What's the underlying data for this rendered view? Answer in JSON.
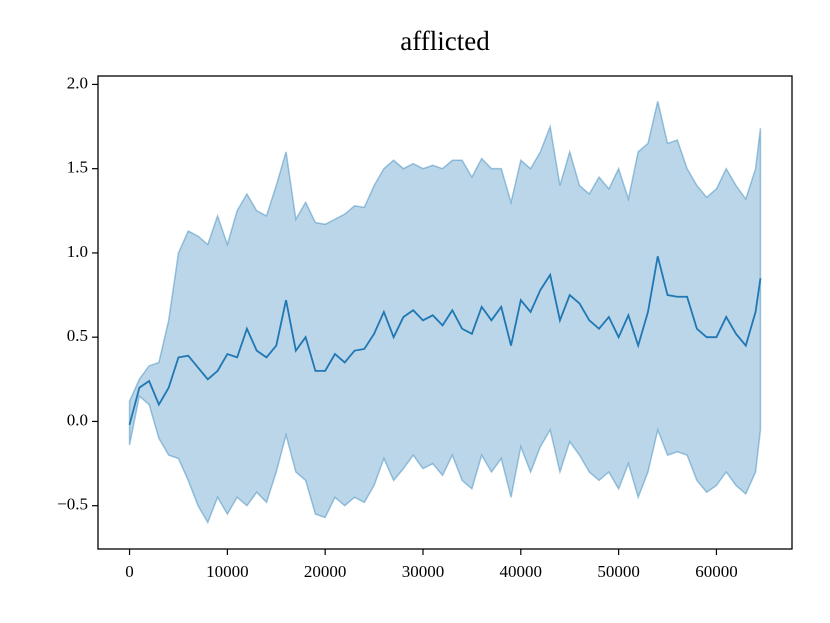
{
  "chart_data": {
    "type": "line",
    "title": "afflicted",
    "x": [
      0,
      1000,
      2000,
      3000,
      4000,
      5000,
      6000,
      7000,
      8000,
      9000,
      10000,
      11000,
      12000,
      13000,
      14000,
      15000,
      16000,
      17000,
      18000,
      19000,
      20000,
      21000,
      22000,
      23000,
      24000,
      25000,
      26000,
      27000,
      28000,
      29000,
      30000,
      31000,
      32000,
      33000,
      34000,
      35000,
      36000,
      37000,
      38000,
      39000,
      40000,
      41000,
      42000,
      43000,
      44000,
      45000,
      46000,
      47000,
      48000,
      49000,
      50000,
      51000,
      52000,
      53000,
      54000,
      55000,
      56000,
      57000,
      58000,
      59000,
      60000,
      61000,
      62000,
      63000,
      64000,
      64500
    ],
    "series": [
      {
        "color": "#1f77b4",
        "values": [
          -0.02,
          0.2,
          0.24,
          0.1,
          0.2,
          0.38,
          0.39,
          0.32,
          0.25,
          0.3,
          0.4,
          0.38,
          0.55,
          0.42,
          0.38,
          0.45,
          0.72,
          0.42,
          0.5,
          0.3,
          0.3,
          0.4,
          0.35,
          0.42,
          0.43,
          0.52,
          0.65,
          0.5,
          0.62,
          0.66,
          0.6,
          0.63,
          0.57,
          0.66,
          0.55,
          0.52,
          0.68,
          0.6,
          0.68,
          0.45,
          0.72,
          0.65,
          0.78,
          0.87,
          0.6,
          0.75,
          0.7,
          0.6,
          0.55,
          0.62,
          0.5,
          0.63,
          0.45,
          0.65,
          0.98,
          0.75,
          0.74,
          0.74,
          0.55,
          0.5,
          0.5,
          0.62,
          0.52,
          0.45,
          0.65,
          0.85
        ]
      }
    ],
    "band": {
      "color": "#1f77b4",
      "upper": [
        0.12,
        0.25,
        0.33,
        0.35,
        0.6,
        1.0,
        1.13,
        1.1,
        1.05,
        1.22,
        1.05,
        1.25,
        1.35,
        1.25,
        1.22,
        1.4,
        1.6,
        1.2,
        1.3,
        1.18,
        1.17,
        1.2,
        1.23,
        1.28,
        1.27,
        1.4,
        1.5,
        1.55,
        1.5,
        1.53,
        1.5,
        1.52,
        1.5,
        1.55,
        1.55,
        1.45,
        1.56,
        1.5,
        1.5,
        1.3,
        1.55,
        1.5,
        1.6,
        1.75,
        1.4,
        1.6,
        1.4,
        1.35,
        1.45,
        1.38,
        1.5,
        1.32,
        1.6,
        1.65,
        1.9,
        1.65,
        1.67,
        1.5,
        1.4,
        1.33,
        1.38,
        1.5,
        1.4,
        1.32,
        1.5,
        1.74
      ],
      "lower": [
        -0.14,
        0.15,
        0.1,
        -0.1,
        -0.2,
        -0.22,
        -0.35,
        -0.5,
        -0.6,
        -0.45,
        -0.55,
        -0.45,
        -0.5,
        -0.42,
        -0.48,
        -0.3,
        -0.08,
        -0.3,
        -0.35,
        -0.55,
        -0.57,
        -0.45,
        -0.5,
        -0.45,
        -0.48,
        -0.38,
        -0.22,
        -0.35,
        -0.28,
        -0.2,
        -0.28,
        -0.25,
        -0.32,
        -0.2,
        -0.35,
        -0.4,
        -0.2,
        -0.3,
        -0.22,
        -0.45,
        -0.15,
        -0.3,
        -0.15,
        -0.05,
        -0.3,
        -0.12,
        -0.2,
        -0.3,
        -0.35,
        -0.3,
        -0.4,
        -0.25,
        -0.45,
        -0.3,
        -0.05,
        -0.2,
        -0.18,
        -0.2,
        -0.35,
        -0.42,
        -0.38,
        -0.3,
        -0.38,
        -0.43,
        -0.3,
        -0.05
      ]
    },
    "xlim": [
      -3225,
      67725
    ],
    "ylim": [
      -0.757,
      2.05
    ],
    "xticks": [
      0,
      10000,
      20000,
      30000,
      40000,
      50000,
      60000
    ],
    "yticks": [
      {
        "value": -0.5,
        "label": "−0.5"
      },
      {
        "value": 0,
        "label": "0.0"
      },
      {
        "value": 0.5,
        "label": "0.5"
      },
      {
        "value": 1,
        "label": "1.0"
      },
      {
        "value": 1.5,
        "label": "1.5"
      },
      {
        "value": 2,
        "label": "2.0"
      }
    ],
    "grid": false
  }
}
